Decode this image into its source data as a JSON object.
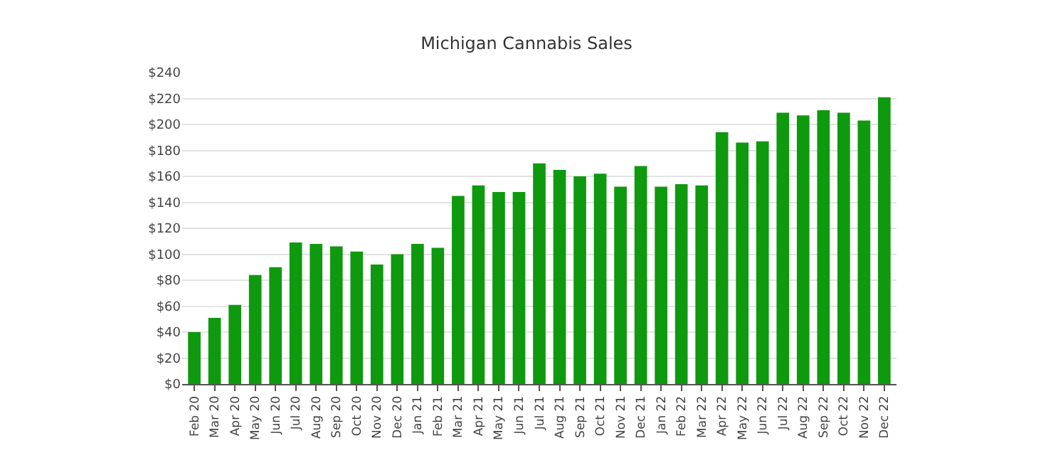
{
  "chart_data": {
    "type": "bar",
    "title": "Michigan Cannabis Sales",
    "categories": [
      "Feb 20",
      "Mar 20",
      "Apr 20",
      "May 20",
      "Jun 20",
      "Jul 20",
      "Aug 20",
      "Sep 20",
      "Oct 20",
      "Nov 20",
      "Dec 20",
      "Jan 21",
      "Feb 21",
      "Mar 21",
      "Apr 21",
      "May 21",
      "Jun 21",
      "Jul 21",
      "Aug 21",
      "Sep 21",
      "Oct 21",
      "Nov 21",
      "Dec 21",
      "Jan 22",
      "Feb 22",
      "Mar 22",
      "Apr 22",
      "May 22",
      "Jun 22",
      "Jul 22",
      "Aug 22",
      "Sep 22",
      "Oct 22",
      "Nov 22",
      "Dec 22"
    ],
    "values": [
      40,
      51,
      61,
      84,
      90,
      109,
      108,
      106,
      102,
      92,
      100,
      108,
      105,
      145,
      153,
      148,
      148,
      170,
      165,
      160,
      162,
      152,
      168,
      152,
      154,
      153,
      194,
      186,
      187,
      209,
      207,
      211,
      209,
      203,
      221
    ],
    "color": "#0e990e",
    "ylim": [
      0,
      240
    ],
    "yticks": [
      {
        "value": 0,
        "label": "$0"
      },
      {
        "value": 20,
        "label": "$20"
      },
      {
        "value": 40,
        "label": "$40"
      },
      {
        "value": 60,
        "label": "$60"
      },
      {
        "value": 80,
        "label": "$80"
      },
      {
        "value": 100,
        "label": "$100"
      },
      {
        "value": 120,
        "label": "$120"
      },
      {
        "value": 140,
        "label": "$140"
      },
      {
        "value": 160,
        "label": "$160"
      },
      {
        "value": 180,
        "label": "$180"
      },
      {
        "value": 200,
        "label": "$200"
      },
      {
        "value": 220,
        "label": "$220"
      },
      {
        "value": 240,
        "label": "$240"
      }
    ],
    "grid": "y"
  }
}
